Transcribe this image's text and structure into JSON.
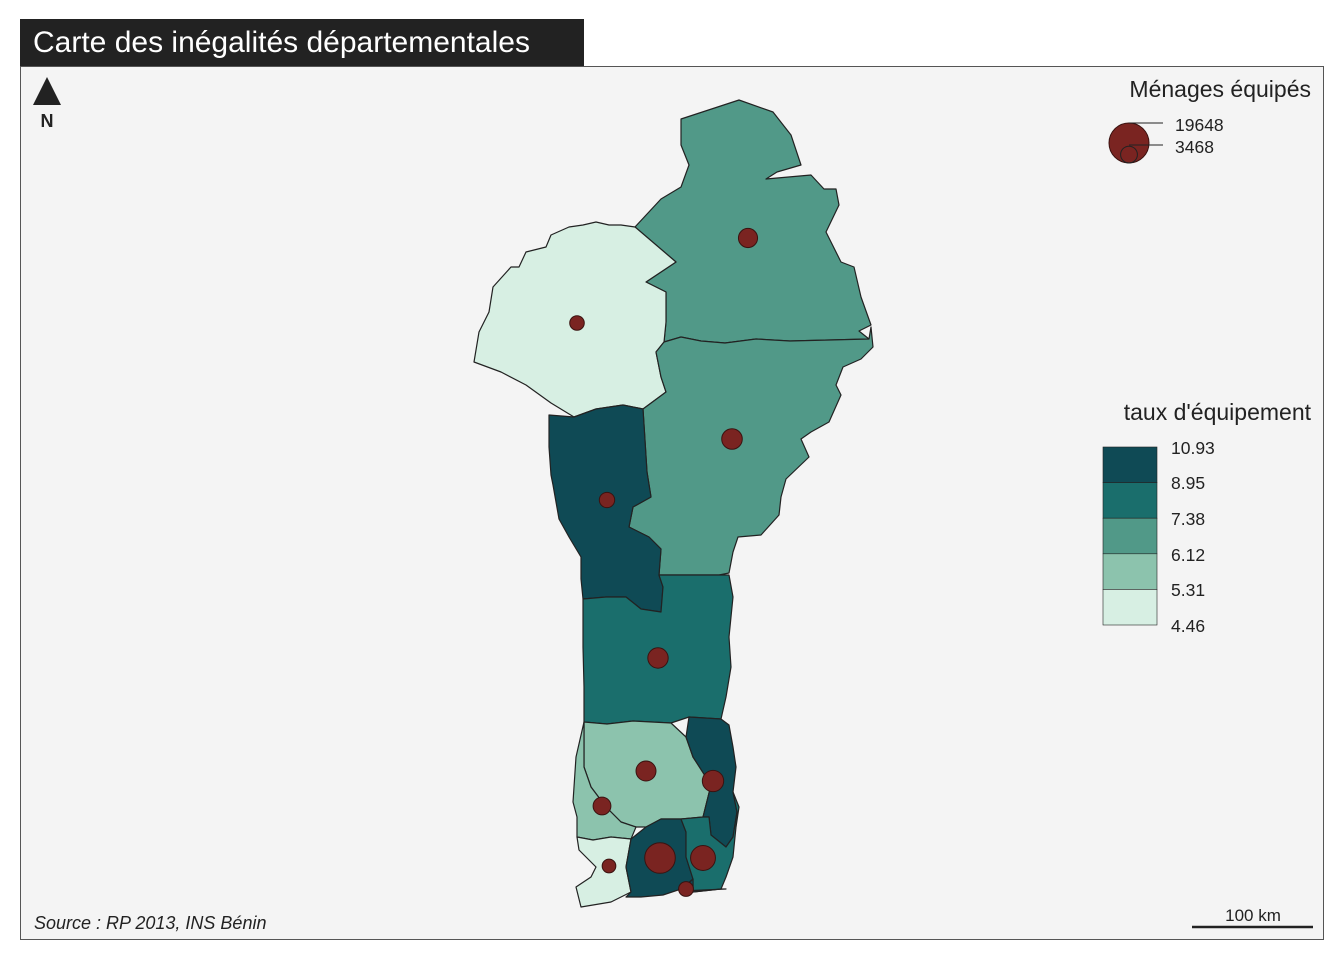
{
  "title": "Carte des inégalités départementales",
  "source": "Source : RP 2013, INS Bénin",
  "north_label": "N",
  "scale_label": "100 km",
  "colors": {
    "title_bg": "#222222",
    "map_bg": "#f4f4f4",
    "symbol_fill": "#7a2421",
    "class_colors": [
      "#d7efe3",
      "#8cc3ad",
      "#519988",
      "#1a6e6c",
      "#0f4a55"
    ]
  },
  "legend_symbols": {
    "title": "Ménages équipés",
    "values": [
      "19648",
      "3468"
    ]
  },
  "legend_choropleth": {
    "title": "taux d'équipement",
    "breaks": [
      "10.93",
      "8.95",
      "7.38",
      "6.12",
      "5.31",
      "4.46"
    ]
  },
  "chart_data": {
    "type": "choropleth-map",
    "title": "Carte des inégalités départementales",
    "variable": "taux d'équipement",
    "symbol_variable": "Ménages équipés",
    "symbol_legend_values": [
      19648,
      3468
    ],
    "class_breaks": [
      4.46,
      5.31,
      6.12,
      7.38,
      8.95,
      10.93
    ],
    "departments": [
      {
        "class": 2,
        "households_equipped": 4500
      },
      {
        "class": 0,
        "households_equipped": 2600
      },
      {
        "class": 2,
        "households_equipped": 5200
      },
      {
        "class": 4,
        "households_equipped": 2900
      },
      {
        "class": 3,
        "households_equipped": 5100
      },
      {
        "class": 1,
        "households_equipped": 4900
      },
      {
        "class": 4,
        "households_equipped": 5600
      },
      {
        "class": 1,
        "households_equipped": 3900
      },
      {
        "class": 0,
        "households_equipped": 2300
      },
      {
        "class": 4,
        "households_equipped": 11500
      },
      {
        "class": 3,
        "households_equipped": 7600
      },
      {
        "class": 4,
        "households_equipped": 2700
      }
    ]
  }
}
